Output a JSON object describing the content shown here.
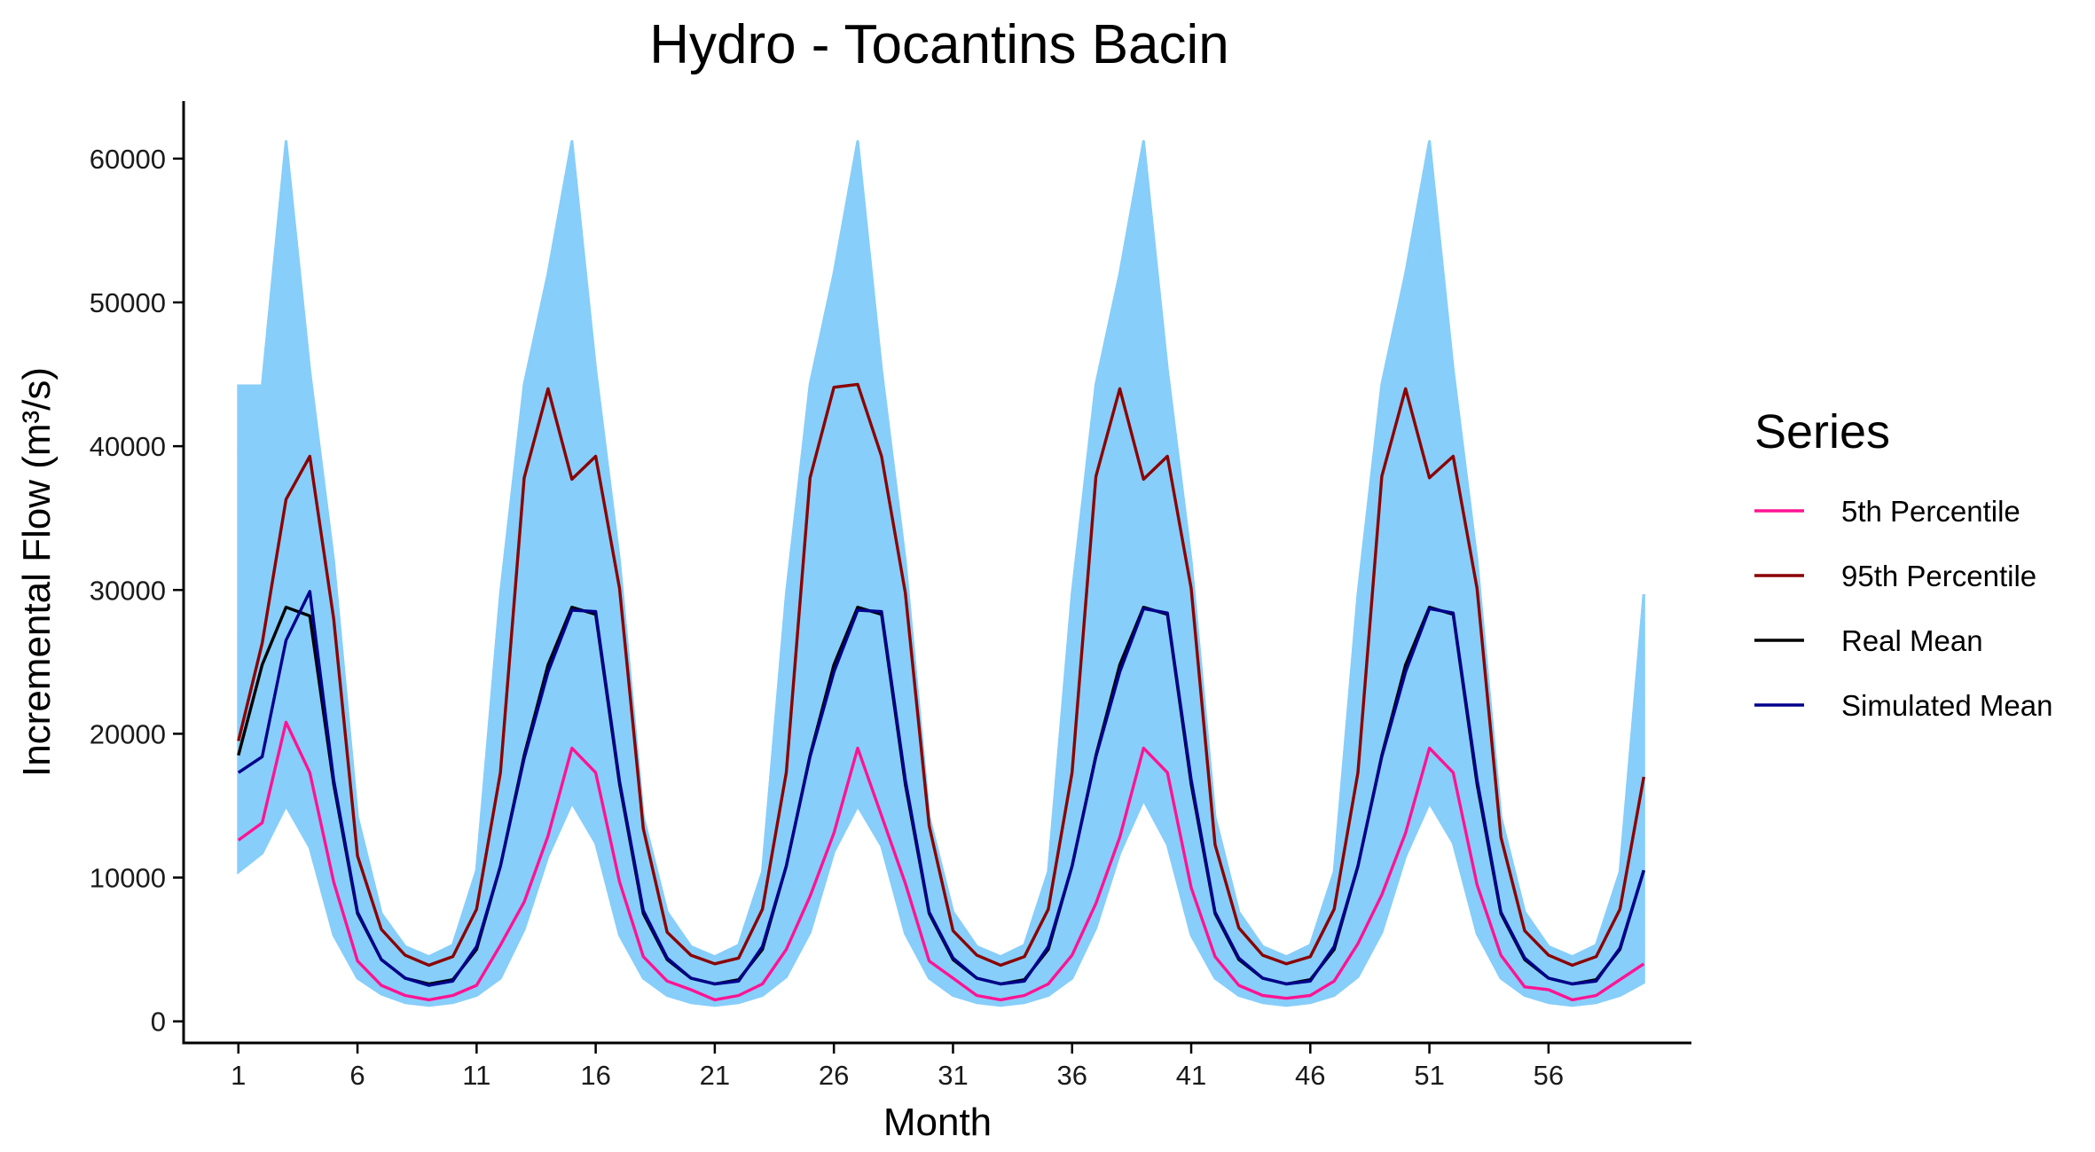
{
  "chart_data": {
    "type": "line",
    "title": "Hydro - Tocantins Bacin",
    "xlabel": "Month",
    "ylabel": "Incremental Flow (m³/s)",
    "x": [
      1,
      2,
      3,
      4,
      5,
      6,
      7,
      8,
      9,
      10,
      11,
      12,
      13,
      14,
      15,
      16,
      17,
      18,
      19,
      20,
      21,
      22,
      23,
      24,
      25,
      26,
      27,
      28,
      29,
      30,
      31,
      32,
      33,
      34,
      35,
      36,
      37,
      38,
      39,
      40,
      41,
      42,
      43,
      44,
      45,
      46,
      47,
      48,
      49,
      50,
      51,
      52,
      53,
      54,
      55,
      56,
      57,
      58,
      59,
      60
    ],
    "x_ticks": [
      1,
      6,
      11,
      16,
      21,
      26,
      31,
      36,
      41,
      46,
      51,
      56
    ],
    "y_ticks": [
      0,
      10000,
      20000,
      30000,
      40000,
      50000,
      60000
    ],
    "xlim": [
      -1.3,
      62
    ],
    "ylim": [
      -1500,
      64000
    ],
    "grid": false,
    "legend": {
      "title": "Series",
      "position": "right",
      "entries": [
        "5th Percentile",
        "95th Percentile",
        "Real Mean",
        "Simulated Mean"
      ]
    },
    "series": [
      {
        "name": "5th Percentile",
        "color": "#ff1493",
        "values": [
          12600,
          13800,
          20800,
          17300,
          9700,
          4200,
          2500,
          1800,
          1500,
          1800,
          2500,
          5300,
          8300,
          12900,
          19000,
          17300,
          9700,
          4500,
          2800,
          2200,
          1500,
          1800,
          2600,
          5000,
          8700,
          13100,
          19000,
          14300,
          9600,
          4200,
          3000,
          1800,
          1500,
          1800,
          2600,
          4600,
          8200,
          12800,
          19000,
          17300,
          9300,
          4500,
          2500,
          1800,
          1600,
          1800,
          2800,
          5400,
          8800,
          13100,
          19000,
          17300,
          9500,
          4600,
          2400,
          2200,
          1500,
          1800,
          2900,
          4000
        ]
      },
      {
        "name": "95th Percentile",
        "color": "#8b0000",
        "values": [
          19500,
          26300,
          36300,
          39300,
          28000,
          11500,
          6400,
          4600,
          3900,
          4500,
          7800,
          17300,
          37800,
          44000,
          37700,
          39300,
          30100,
          13400,
          6200,
          4600,
          4000,
          4400,
          7800,
          17300,
          37800,
          44100,
          44300,
          39300,
          29800,
          13600,
          6300,
          4600,
          3900,
          4500,
          7800,
          17300,
          37900,
          44000,
          37700,
          39300,
          30100,
          12300,
          6500,
          4600,
          4000,
          4500,
          7800,
          17300,
          37900,
          44000,
          37800,
          39300,
          30100,
          12800,
          6300,
          4600,
          3900,
          4500,
          7800,
          17000
        ]
      },
      {
        "name": "Real Mean",
        "color": "#000000",
        "values": [
          18500,
          24800,
          28800,
          28200,
          16500,
          7500,
          4300,
          3000,
          2600,
          2900,
          5000,
          10800,
          18500,
          24800,
          28800,
          28300,
          16500,
          7500,
          4300,
          3000,
          2600,
          2900,
          5000,
          10800,
          18500,
          24800,
          28800,
          28300,
          16500,
          7500,
          4300,
          3000,
          2600,
          2900,
          5000,
          10800,
          18500,
          24800,
          28800,
          28300,
          16500,
          7500,
          4300,
          3000,
          2600,
          2900,
          5000,
          10800,
          18500,
          24800,
          28800,
          28300,
          16500,
          7500,
          4300,
          3000,
          2600,
          2900,
          5000,
          10500
        ]
      },
      {
        "name": "Simulated Mean",
        "color": "#00008b",
        "values": [
          17300,
          18400,
          26500,
          29900,
          16800,
          7600,
          4300,
          3000,
          2500,
          2800,
          5200,
          10800,
          18300,
          24300,
          28600,
          28500,
          16700,
          7700,
          4400,
          3000,
          2600,
          2800,
          5200,
          10800,
          18400,
          24300,
          28600,
          28500,
          16800,
          7600,
          4400,
          3000,
          2600,
          2800,
          5200,
          10800,
          18400,
          24300,
          28700,
          28400,
          16800,
          7600,
          4400,
          3000,
          2600,
          2800,
          5200,
          10800,
          18400,
          24300,
          28700,
          28400,
          16800,
          7600,
          4400,
          3000,
          2600,
          2800,
          5100,
          10500
        ]
      }
    ],
    "simulations": {
      "color": "#87cefa",
      "lower_envelope": [
        10400,
        11700,
        15000,
        12100,
        6000,
        3000,
        1900,
        1300,
        1100,
        1300,
        1800,
        3000,
        6400,
        11500,
        15200,
        12400,
        6000,
        3000,
        1800,
        1300,
        1100,
        1300,
        1800,
        3100,
        6200,
        11800,
        15000,
        12200,
        6100,
        3000,
        1800,
        1300,
        1100,
        1300,
        1800,
        3000,
        6500,
        11700,
        15400,
        12300,
        6000,
        3000,
        1800,
        1300,
        1100,
        1300,
        1800,
        3100,
        6200,
        11500,
        15200,
        12400,
        6100,
        3000,
        1800,
        1300,
        1100,
        1300,
        1800,
        2700
      ],
      "upper_envelope": [
        44200,
        44200,
        61200,
        45200,
        32000,
        14200,
        7500,
        5200,
        4500,
        5300,
        10500,
        29700,
        44300,
        52000,
        61200,
        45300,
        32000,
        14200,
        7600,
        5200,
        4500,
        5300,
        10400,
        29700,
        44300,
        52000,
        61200,
        45300,
        32000,
        14200,
        7600,
        5200,
        4500,
        5300,
        10400,
        29700,
        44300,
        52000,
        61200,
        45300,
        32000,
        14200,
        7600,
        5200,
        4500,
        5300,
        10400,
        29700,
        44300,
        52000,
        61200,
        45300,
        32000,
        14200,
        7600,
        5200,
        4500,
        5300,
        10400,
        29700
      ]
    }
  }
}
